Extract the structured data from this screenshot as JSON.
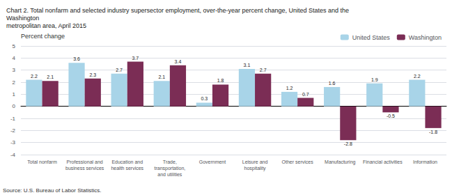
{
  "chart_data": {
    "type": "bar",
    "title": "Chart 2. Total nonfarm and selected industry supersector employment, over-the-year percent change, United States and the Washington\nmetropolitan area, April 2015",
    "ylabel": "Percent change",
    "source": "Source: U.S. Bureau of Labor Statistics.",
    "categories": [
      "Total nonfarm",
      "Professional and\nbusiness services",
      "Education and\nhealth services",
      "Trade,\ntransportation,\nand utilities",
      "Government",
      "Leisure and\nhospitality",
      "Other services",
      "Manufacturing",
      "Financial activities",
      "Information"
    ],
    "series": [
      {
        "name": "United States",
        "color": "#a8d4e8",
        "values": [
          2.2,
          3.6,
          2.7,
          2.1,
          0.3,
          3.1,
          1.2,
          1.6,
          1.9,
          2.2
        ]
      },
      {
        "name": "Washington",
        "color": "#7b2d55",
        "values": [
          2.1,
          2.3,
          3.7,
          3.4,
          1.8,
          2.7,
          0.7,
          -2.8,
          -0.5,
          -1.8
        ]
      }
    ],
    "ylim": [
      -4,
      5
    ],
    "yticks": [
      -4,
      -3,
      -2,
      -1,
      0,
      1,
      2,
      3,
      4,
      5
    ],
    "grid": true,
    "legend": "upper right",
    "data_labels": true
  }
}
